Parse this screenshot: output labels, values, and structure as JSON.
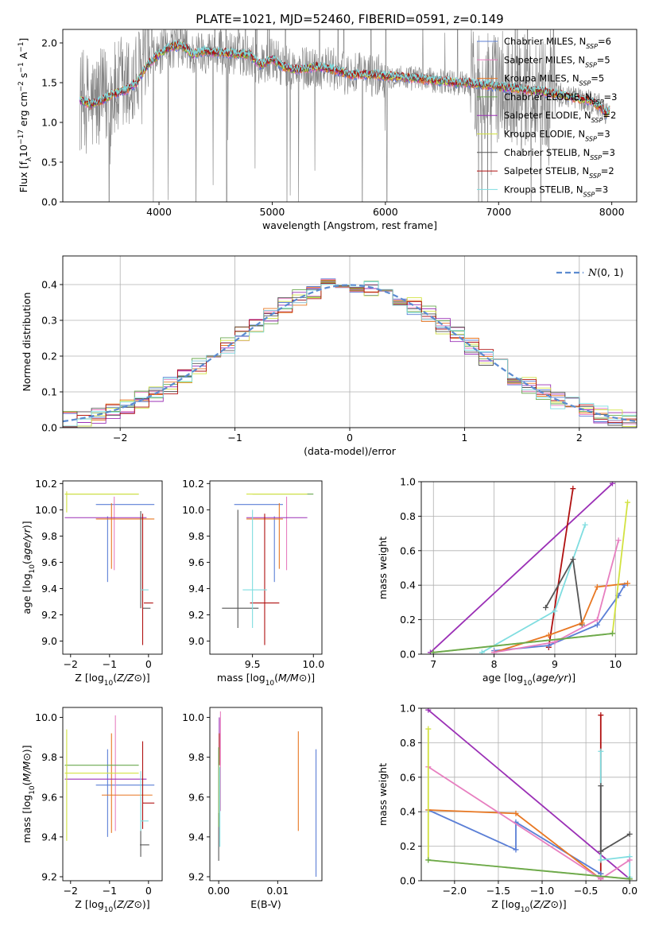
{
  "figure": {
    "title": "PLATE=1021, MJD=52460, FIBERID=0591, z=0.149"
  },
  "series_colors": {
    "Chabrier MILES": "#5b7fd6",
    "Salpeter MILES": "#e77fc0",
    "Kroupa MILES": "#e87722",
    "Chabrier ELODIE": "#6aa84f",
    "Salpeter ELODIE": "#9b30b6",
    "Kroupa ELODIE": "#d2e241",
    "Chabrier STELIB": "#555555",
    "Salpeter STELIB": "#b01010",
    "Kroupa STELIB": "#7fdde0"
  },
  "chart_data": [
    {
      "id": "spectrum",
      "type": "line",
      "xlabel": "wavelength [Angstrom, rest frame]",
      "ylabel": "Flux [fλ10⁻¹⁷ erg cm⁻² s⁻¹ A⁻¹]",
      "xlim": [
        3150,
        8220
      ],
      "ylim": [
        0,
        2.17
      ],
      "xticks": [
        4000,
        5000,
        6000,
        7000,
        8000
      ],
      "yticks": [
        0.0,
        0.5,
        1.0,
        1.5,
        2.0
      ],
      "grid": false,
      "legend": [
        "Chabrier MILES, N_SSP=6",
        "Salpeter MILES, N_SSP=5",
        "Kroupa MILES, N_SSP=5",
        "Chabrier ELODIE, N_SSP=3",
        "Salpeter ELODIE, N_SSP=2",
        "Kroupa ELODIE, N_SSP=3",
        "Chabrier STELIB, N_SSP=3",
        "Salpeter STELIB, N_SSP=2",
        "Kroupa STELIB, N_SSP=3"
      ],
      "legend_labels": [
        {
          "pre": "Chabrier MILES, N",
          "sub": "SSP",
          "post": "=6"
        },
        {
          "pre": "Salpeter MILES, N",
          "sub": "SSP",
          "post": "=5"
        },
        {
          "pre": "Kroupa MILES, N",
          "sub": "SSP",
          "post": "=5"
        },
        {
          "pre": "Chabrier ELODIE, N",
          "sub": "SSP",
          "post": "=3"
        },
        {
          "pre": "Salpeter ELODIE, N",
          "sub": "SSP",
          "post": "=2"
        },
        {
          "pre": "Kroupa ELODIE, N",
          "sub": "SSP",
          "post": "=3"
        },
        {
          "pre": "Chabrier STELIB, N",
          "sub": "SSP",
          "post": "=3"
        },
        {
          "pre": "Salpeter STELIB, N",
          "sub": "SSP",
          "post": "=2"
        },
        {
          "pre": "Kroupa STELIB, N",
          "sub": "SSP",
          "post": "=3"
        }
      ],
      "legend_placement": "upper right",
      "data_color": "#808080",
      "continuum": [
        [
          3300,
          1.28
        ],
        [
          3400,
          1.22
        ],
        [
          3500,
          1.28
        ],
        [
          3600,
          1.36
        ],
        [
          3700,
          1.4
        ],
        [
          3800,
          1.5
        ],
        [
          3900,
          1.72
        ],
        [
          4000,
          1.86
        ],
        [
          4100,
          1.95
        ],
        [
          4200,
          1.97
        ],
        [
          4300,
          1.85
        ],
        [
          4400,
          1.9
        ],
        [
          4500,
          1.88
        ],
        [
          4600,
          1.87
        ],
        [
          4700,
          1.86
        ],
        [
          4800,
          1.85
        ],
        [
          4900,
          1.72
        ],
        [
          5000,
          1.8
        ],
        [
          5100,
          1.7
        ],
        [
          5200,
          1.66
        ],
        [
          5300,
          1.68
        ],
        [
          5400,
          1.7
        ],
        [
          5500,
          1.68
        ],
        [
          5600,
          1.64
        ],
        [
          5700,
          1.6
        ],
        [
          5800,
          1.6
        ],
        [
          5900,
          1.6
        ],
        [
          6000,
          1.58
        ],
        [
          6100,
          1.58
        ],
        [
          6200,
          1.56
        ],
        [
          6300,
          1.55
        ],
        [
          6400,
          1.53
        ],
        [
          6500,
          1.52
        ],
        [
          6600,
          1.5
        ],
        [
          6700,
          1.5
        ],
        [
          6800,
          1.48
        ],
        [
          6900,
          1.47
        ],
        [
          7000,
          1.45
        ],
        [
          7100,
          1.43
        ],
        [
          7200,
          1.42
        ],
        [
          7300,
          1.4
        ],
        [
          7400,
          1.38
        ],
        [
          7500,
          1.36
        ],
        [
          7600,
          1.33
        ],
        [
          7700,
          1.3
        ],
        [
          7800,
          1.28
        ],
        [
          7900,
          1.2
        ],
        [
          7950,
          1.1
        ],
        [
          8000,
          1.22
        ]
      ]
    },
    {
      "id": "residuals",
      "type": "histogram",
      "xlabel": "(data-model)/error",
      "ylabel": "Normed distribution",
      "xlim": [
        -2.5,
        2.5
      ],
      "ylim": [
        0,
        0.48
      ],
      "xticks": [
        -2,
        -1,
        0,
        1,
        2
      ],
      "yticks": [
        0.0,
        0.1,
        0.2,
        0.3,
        0.4
      ],
      "grid": true,
      "legend": [
        "N(0,1)"
      ],
      "legend_label": "(0, 1)",
      "legend_placement": "upper right",
      "bin_width": 0.125,
      "reference_curve": "normal(0,1)",
      "reference_color": "#5b8bd0"
    },
    {
      "id": "age-vs-Z",
      "type": "scatter",
      "xlabel": "Z [log10(Z/Z⊙)]",
      "ylabel": "age [log10(age/yr)]",
      "xlim": [
        -2.2,
        0.35
      ],
      "ylim": [
        8.9,
        10.22
      ],
      "xticks": [
        -2,
        -1,
        0
      ],
      "yticks": [
        9.0,
        9.2,
        9.4,
        9.6,
        9.8,
        10.0,
        10.2
      ],
      "grid": false,
      "points": [
        {
          "series": "Chabrier MILES",
          "x": -0.6,
          "xerr": 0.75,
          "y": 10.04,
          "yerr": 0.0
        },
        {
          "series": "Chabrier MILES",
          "x": -1.05,
          "xerr": 0.0,
          "y": 9.7,
          "yerr": 0.25
        },
        {
          "series": "Salpeter MILES",
          "x": -0.88,
          "xerr": 0.0,
          "y": 9.82,
          "yerr": 0.28
        },
        {
          "series": "Kroupa MILES",
          "x": -0.6,
          "xerr": 0.75,
          "y": 9.93,
          "yerr": 0.0
        },
        {
          "series": "Kroupa MILES",
          "x": -0.95,
          "xerr": 0.0,
          "y": 9.8,
          "yerr": 0.25
        },
        {
          "series": "Chabrier ELODIE",
          "x": -1.2,
          "xerr": 0.95,
          "y": 10.12,
          "yerr": 0.0
        },
        {
          "series": "Salpeter ELODIE",
          "x": -1.1,
          "xerr": 1.05,
          "y": 9.94,
          "yerr": 0.0
        },
        {
          "series": "Kroupa ELODIE",
          "x": -1.2,
          "xerr": 0.95,
          "y": 10.12,
          "yerr": 0.0
        },
        {
          "series": "Kroupa ELODIE",
          "x": -2.1,
          "xerr": 0.0,
          "y": 10.06,
          "yerr": 0.08
        },
        {
          "series": "Chabrier STELIB",
          "x": -0.2,
          "xerr": 0.0,
          "y": 9.62,
          "yerr": 0.37
        },
        {
          "series": "Chabrier STELIB",
          "x": -0.05,
          "xerr": 0.1,
          "y": 9.25,
          "yerr": 0.0
        },
        {
          "series": "Salpeter STELIB",
          "x": -0.15,
          "xerr": 0.0,
          "y": 9.47,
          "yerr": 0.5
        },
        {
          "series": "Salpeter STELIB",
          "x": 0.0,
          "xerr": 0.12,
          "y": 9.29,
          "yerr": 0.0
        },
        {
          "series": "Kroupa STELIB",
          "x": -0.1,
          "xerr": 0.1,
          "y": 9.39,
          "yerr": 0.0
        }
      ]
    },
    {
      "id": "age-vs-mass",
      "type": "scatter",
      "xlabel": "mass [log10(M/M⊙)]",
      "ylabel": "",
      "xlim": [
        9.15,
        10.07
      ],
      "ylim": [
        8.9,
        10.22
      ],
      "xticks": [
        9.5,
        10.0
      ],
      "yticks": [
        9.0,
        9.2,
        9.4,
        9.6,
        9.8,
        10.0,
        10.2
      ],
      "grid": false,
      "points": [
        {
          "series": "Chabrier MILES",
          "x": 9.55,
          "xerr": 0.2,
          "y": 10.04,
          "yerr": 0.0
        },
        {
          "series": "Chabrier MILES",
          "x": 9.68,
          "xerr": 0.0,
          "y": 9.7,
          "yerr": 0.25
        },
        {
          "series": "Salpeter MILES",
          "x": 9.78,
          "xerr": 0.0,
          "y": 9.82,
          "yerr": 0.28
        },
        {
          "series": "Kroupa MILES",
          "x": 9.6,
          "xerr": 0.15,
          "y": 9.93,
          "yerr": 0.0
        },
        {
          "series": "Kroupa MILES",
          "x": 9.72,
          "xerr": 0.0,
          "y": 9.8,
          "yerr": 0.25
        },
        {
          "series": "Chabrier ELODIE",
          "x": 9.75,
          "xerr": 0.25,
          "y": 10.12,
          "yerr": 0.0
        },
        {
          "series": "Salpeter ELODIE",
          "x": 9.7,
          "xerr": 0.25,
          "y": 9.94,
          "yerr": 0.0
        },
        {
          "series": "Kroupa ELODIE",
          "x": 9.7,
          "xerr": 0.25,
          "y": 10.12,
          "yerr": 0.0
        },
        {
          "series": "Chabrier STELIB",
          "x": 9.38,
          "xerr": 0.0,
          "y": 9.55,
          "yerr": 0.45
        },
        {
          "series": "Chabrier STELIB",
          "x": 9.4,
          "xerr": 0.15,
          "y": 9.25,
          "yerr": 0.0
        },
        {
          "series": "Salpeter STELIB",
          "x": 9.6,
          "xerr": 0.0,
          "y": 9.47,
          "yerr": 0.5
        },
        {
          "series": "Salpeter STELIB",
          "x": 9.6,
          "xerr": 0.12,
          "y": 9.29,
          "yerr": 0.0
        },
        {
          "series": "Kroupa STELIB",
          "x": 9.52,
          "xerr": 0.1,
          "y": 9.39,
          "yerr": 0.0
        },
        {
          "series": "Kroupa STELIB",
          "x": 9.5,
          "xerr": 0.0,
          "y": 9.55,
          "yerr": 0.45
        }
      ]
    },
    {
      "id": "weight-vs-age",
      "type": "line",
      "xlabel": "age [log10(age/yr)]",
      "ylabel": "mass weight",
      "xlim": [
        6.8,
        10.35
      ],
      "ylim": [
        0,
        1.0
      ],
      "xticks": [
        7,
        8,
        9,
        10
      ],
      "yticks": [
        0.0,
        0.2,
        0.4,
        0.6,
        0.8,
        1.0
      ],
      "grid": true,
      "series": [
        {
          "series": "Salpeter ELODIE",
          "x": [
            6.95,
            9.95
          ],
          "y": [
            0.01,
            0.99
          ]
        },
        {
          "series": "Salpeter STELIB",
          "x": [
            8.9,
            9.3
          ],
          "y": [
            0.04,
            0.96
          ]
        },
        {
          "series": "Kroupa STELIB",
          "x": [
            7.8,
            9.0,
            9.5
          ],
          "y": [
            0.01,
            0.25,
            0.75
          ]
        },
        {
          "series": "Chabrier STELIB",
          "x": [
            8.85,
            9.3,
            9.45
          ],
          "y": [
            0.27,
            0.55,
            0.17
          ]
        },
        {
          "series": "Chabrier MILES",
          "x": [
            8.0,
            8.9,
            9.7,
            10.05,
            10.15
          ],
          "y": [
            0.02,
            0.05,
            0.17,
            0.34,
            0.4
          ]
        },
        {
          "series": "Kroupa MILES",
          "x": [
            8.0,
            8.9,
            9.45,
            9.7,
            10.2
          ],
          "y": [
            0.01,
            0.11,
            0.18,
            0.39,
            0.41
          ]
        },
        {
          "series": "Salpeter MILES",
          "x": [
            8.0,
            9.0,
            9.7,
            10.05
          ],
          "y": [
            0.01,
            0.07,
            0.2,
            0.66
          ]
        },
        {
          "series": "Kroupa ELODIE",
          "x": [
            7.0,
            9.95,
            10.2
          ],
          "y": [
            0.01,
            0.12,
            0.88
          ]
        },
        {
          "series": "Chabrier ELODIE",
          "x": [
            7.0,
            9.95
          ],
          "y": [
            0.01,
            0.12
          ]
        }
      ]
    },
    {
      "id": "mass-vs-Z",
      "type": "scatter",
      "xlabel": "Z [log10(Z/Z⊙)]",
      "ylabel": "mass [log10(M/M⊙)]",
      "xlim": [
        -2.2,
        0.35
      ],
      "ylim": [
        9.18,
        10.05
      ],
      "xticks": [
        -2,
        -1,
        0
      ],
      "yticks": [
        9.2,
        9.4,
        9.6,
        9.8,
        10.0
      ],
      "grid": false,
      "points": [
        {
          "series": "Chabrier MILES",
          "x": -0.6,
          "xerr": 0.75,
          "y": 9.66,
          "yerr": 0.0
        },
        {
          "series": "Chabrier MILES",
          "x": -1.05,
          "xerr": 0.0,
          "y": 9.62,
          "yerr": 0.22
        },
        {
          "series": "Salpeter MILES",
          "x": -0.85,
          "xerr": 0.0,
          "y": 9.72,
          "yerr": 0.29
        },
        {
          "series": "Kroupa MILES",
          "x": -0.55,
          "xerr": 0.65,
          "y": 9.61,
          "yerr": 0.0
        },
        {
          "series": "Kroupa MILES",
          "x": -0.95,
          "xerr": 0.0,
          "y": 9.67,
          "yerr": 0.25
        },
        {
          "series": "Chabrier ELODIE",
          "x": -1.2,
          "xerr": 0.95,
          "y": 9.76,
          "yerr": 0.0
        },
        {
          "series": "Salpeter ELODIE",
          "x": -1.1,
          "xerr": 1.05,
          "y": 9.69,
          "yerr": 0.0
        },
        {
          "series": "Kroupa ELODIE",
          "x": -1.2,
          "xerr": 0.95,
          "y": 9.72,
          "yerr": 0.0
        },
        {
          "series": "Kroupa ELODIE",
          "x": -2.1,
          "xerr": 0.0,
          "y": 9.66,
          "yerr": 0.28
        },
        {
          "series": "Chabrier STELIB",
          "x": -0.1,
          "xerr": 0.12,
          "y": 9.36,
          "yerr": 0.0
        },
        {
          "series": "Chabrier STELIB",
          "x": -0.2,
          "xerr": 0.0,
          "y": 9.45,
          "yerr": 0.15
        },
        {
          "series": "Salpeter STELIB",
          "x": 0.0,
          "xerr": 0.15,
          "y": 9.57,
          "yerr": 0.0
        },
        {
          "series": "Salpeter STELIB",
          "x": -0.15,
          "xerr": 0.0,
          "y": 9.66,
          "yerr": 0.22
        },
        {
          "series": "Kroupa STELIB",
          "x": -0.1,
          "xerr": 0.1,
          "y": 9.48,
          "yerr": 0.0
        },
        {
          "series": "Kroupa STELIB",
          "x": -0.2,
          "xerr": 0.0,
          "y": 9.58,
          "yerr": 0.15
        }
      ]
    },
    {
      "id": "mass-vs-ebv",
      "type": "scatter",
      "xlabel": "E(B-V)",
      "ylabel": "",
      "xlim": [
        -0.0015,
        0.0175
      ],
      "ylim": [
        9.18,
        10.05
      ],
      "xticks": [
        0.0,
        0.01
      ],
      "tick_labels": [
        "0.00",
        "0.01"
      ],
      "yticks": [
        9.2,
        9.4,
        9.6,
        9.8,
        10.0
      ],
      "grid": false,
      "points": [
        {
          "series": "Chabrier MILES",
          "x": 0.0165,
          "xerr": 0.0,
          "y": 9.52,
          "yerr": 0.32
        },
        {
          "series": "Kroupa MILES",
          "x": 0.0135,
          "xerr": 0.0,
          "y": 9.68,
          "yerr": 0.25
        },
        {
          "series": "Salpeter MILES",
          "x": 0.0003,
          "xerr": 0.0,
          "y": 9.78,
          "yerr": 0.25
        },
        {
          "series": "Salpeter ELODIE",
          "x": 0.0001,
          "xerr": 0.0,
          "y": 9.92,
          "yerr": 0.08
        },
        {
          "series": "Salpeter STELIB",
          "x": 0.0001,
          "xerr": 0.0,
          "y": 9.84,
          "yerr": 0.08
        },
        {
          "series": "Chabrier STELIB",
          "x": 0.0,
          "xerr": 0.0,
          "y": 9.4,
          "yerr": 0.12
        },
        {
          "series": "Kroupa STELIB",
          "x": 0.0002,
          "xerr": 0.0,
          "y": 9.55,
          "yerr": 0.2
        },
        {
          "series": "Chabrier ELODIE",
          "x": 0.0,
          "xerr": 0.0,
          "y": 9.65,
          "yerr": 0.2
        }
      ]
    },
    {
      "id": "weight-vs-Z",
      "type": "line",
      "xlabel": "Z [log10(Z/Z⊙)]",
      "ylabel": "mass weight",
      "xlim": [
        -2.38,
        0.08
      ],
      "ylim": [
        0,
        1.0
      ],
      "xticks": [
        -2.0,
        -1.5,
        -1.0,
        -0.5,
        0.0
      ],
      "yticks": [
        0.0,
        0.2,
        0.4,
        0.6,
        0.8,
        1.0
      ],
      "grid": true,
      "series": [
        {
          "series": "Salpeter ELODIE",
          "x": [
            -2.3,
            0.0
          ],
          "y": [
            0.99,
            0.01
          ]
        },
        {
          "series": "Salpeter STELIB",
          "x": [
            -0.33,
            -0.33
          ],
          "y": [
            0.04,
            0.96
          ]
        },
        {
          "series": "Kroupa STELIB",
          "x": [
            -0.33,
            -0.33,
            0.0,
            0.0
          ],
          "y": [
            0.75,
            0.12,
            0.14,
            0.02
          ]
        },
        {
          "series": "Chabrier STELIB",
          "x": [
            -0.33,
            -0.33,
            0.0
          ],
          "y": [
            0.55,
            0.17,
            0.27
          ]
        },
        {
          "series": "Chabrier MILES",
          "x": [
            -2.3,
            -1.3,
            -1.3,
            -0.33,
            -0.33
          ],
          "y": [
            0.41,
            0.18,
            0.34,
            0.04,
            0.01
          ]
        },
        {
          "series": "Kroupa MILES",
          "x": [
            -2.3,
            -1.3,
            -0.33
          ],
          "y": [
            0.41,
            0.39,
            0.01
          ]
        },
        {
          "series": "Salpeter MILES",
          "x": [
            -2.3,
            -0.33,
            0.0
          ],
          "y": [
            0.66,
            0.01,
            0.12
          ]
        },
        {
          "series": "Kroupa ELODIE",
          "x": [
            -2.3,
            -2.3,
            0.0
          ],
          "y": [
            0.88,
            0.12,
            0.01
          ]
        },
        {
          "series": "Chabrier ELODIE",
          "x": [
            -2.3,
            0.0
          ],
          "y": [
            0.12,
            0.01
          ]
        }
      ]
    }
  ]
}
